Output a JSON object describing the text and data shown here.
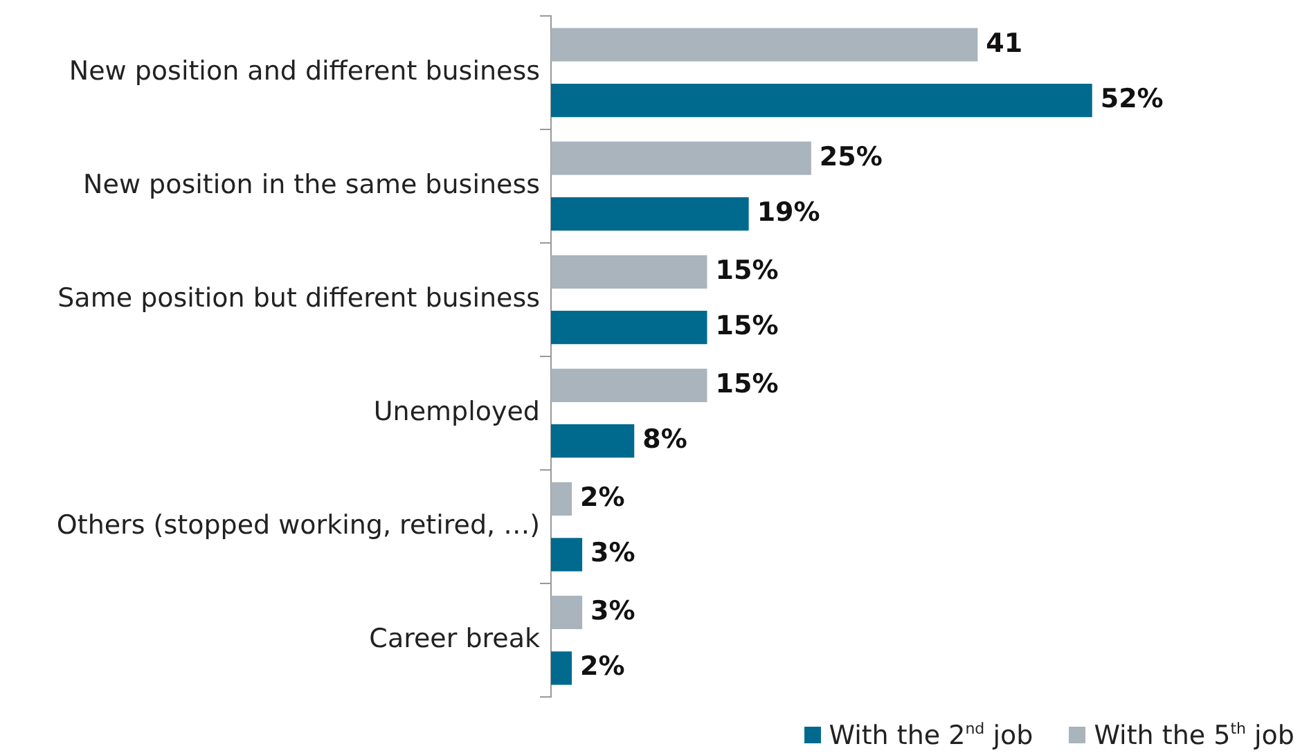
{
  "chart_data": {
    "type": "bar",
    "orientation": "horizontal",
    "legend": "bottom right",
    "categories": [
      "New position and different business",
      "New position in the same business",
      "Same position but different business",
      "Unemployed",
      "Others (stopped working, retired, …)",
      "Career break"
    ],
    "series": [
      {
        "name": "With the 5$^{th}$ job",
        "color": "#a9b4bd",
        "values": [
          41,
          25,
          15,
          15,
          2,
          3
        ],
        "value_labels": [
          "41",
          "25%",
          "15%",
          "15%",
          "2%",
          "3%"
        ]
      },
      {
        "name": "With the 2$^{nd}$ job",
        "color": "#006a8e",
        "values": [
          52,
          19,
          15,
          8,
          3,
          2
        ],
        "value_labels": [
          "52%",
          "19%",
          "15%",
          "8%",
          "3%",
          "2%"
        ]
      }
    ]
  }
}
